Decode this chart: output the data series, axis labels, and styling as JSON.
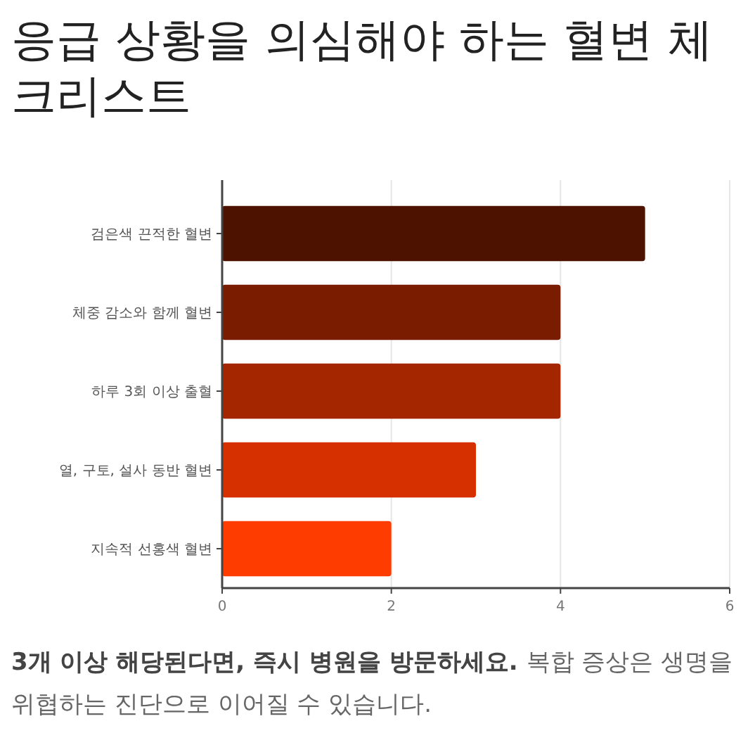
{
  "chart_data": {
    "type": "bar",
    "orientation": "horizontal",
    "title": "응급 상황을 의심해야 하는 혈변 체크리스트",
    "categories": [
      "검은색 끈적한 혈변",
      "체중 감소와 함께 혈변",
      "하루 3회 이상 출혈",
      "열, 구토, 설사 동반 혈변",
      "지속적 선홍색 혈변"
    ],
    "values": [
      5,
      4,
      4,
      3,
      2
    ],
    "colors": [
      "#4d1300",
      "#7a1c00",
      "#a32600",
      "#d63000",
      "#ff3c00"
    ],
    "xlim": [
      0,
      6
    ],
    "xticks": [
      0,
      2,
      4,
      6
    ],
    "grid": "x",
    "annotations": [
      "3개 이상 해당된다면, 즉시 병원을 방문하세요.",
      "복합 증상은 생명을 위협하는 진단으로 이어질 수 있습니다."
    ]
  }
}
